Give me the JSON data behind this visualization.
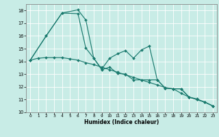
{
  "title": "",
  "xlabel": "Humidex (Indice chaleur)",
  "xlim": [
    -0.5,
    23.5
  ],
  "ylim": [
    10,
    18.5
  ],
  "yticks": [
    10,
    11,
    12,
    13,
    14,
    15,
    16,
    17,
    18
  ],
  "xticks": [
    0,
    1,
    2,
    3,
    4,
    5,
    6,
    7,
    8,
    9,
    10,
    11,
    12,
    13,
    14,
    15,
    16,
    17,
    18,
    19,
    20,
    21,
    22,
    23
  ],
  "bg_color": "#c8ece6",
  "line_color": "#1a7a6e",
  "grid_color": "#ffffff",
  "line1": {
    "x": [
      0,
      1,
      2,
      3,
      4,
      5,
      6,
      7,
      8,
      9,
      10,
      11,
      12,
      13,
      14,
      15,
      16,
      17,
      18,
      19,
      20,
      21,
      22,
      23
    ],
    "y": [
      14.1,
      14.25,
      14.3,
      14.3,
      14.3,
      14.2,
      14.1,
      13.9,
      13.75,
      13.55,
      13.35,
      13.15,
      12.95,
      12.75,
      12.55,
      12.35,
      12.15,
      11.95,
      11.85,
      11.5,
      11.2,
      11.05,
      10.8,
      10.5
    ]
  },
  "line2": {
    "x": [
      0,
      2,
      4,
      6,
      7,
      8,
      9,
      10,
      11,
      12,
      13,
      14,
      15,
      16,
      17,
      18,
      19,
      20,
      21,
      22,
      23
    ],
    "y": [
      14.1,
      16.0,
      17.8,
      18.05,
      17.25,
      14.25,
      13.4,
      14.25,
      14.6,
      14.85,
      14.25,
      14.9,
      15.2,
      12.55,
      11.9,
      11.85,
      11.85,
      11.2,
      11.0,
      10.8,
      10.5
    ]
  },
  "line3": {
    "x": [
      0,
      2,
      4,
      6,
      7,
      8,
      9,
      10,
      11,
      12,
      13,
      14,
      15,
      16,
      17,
      18,
      19,
      20,
      21,
      22,
      23
    ],
    "y": [
      14.1,
      16.0,
      17.8,
      17.75,
      15.05,
      14.25,
      13.35,
      13.55,
      13.05,
      13.0,
      12.55,
      12.55,
      12.55,
      12.55,
      11.9,
      11.85,
      11.85,
      11.2,
      11.0,
      10.8,
      10.5
    ]
  }
}
